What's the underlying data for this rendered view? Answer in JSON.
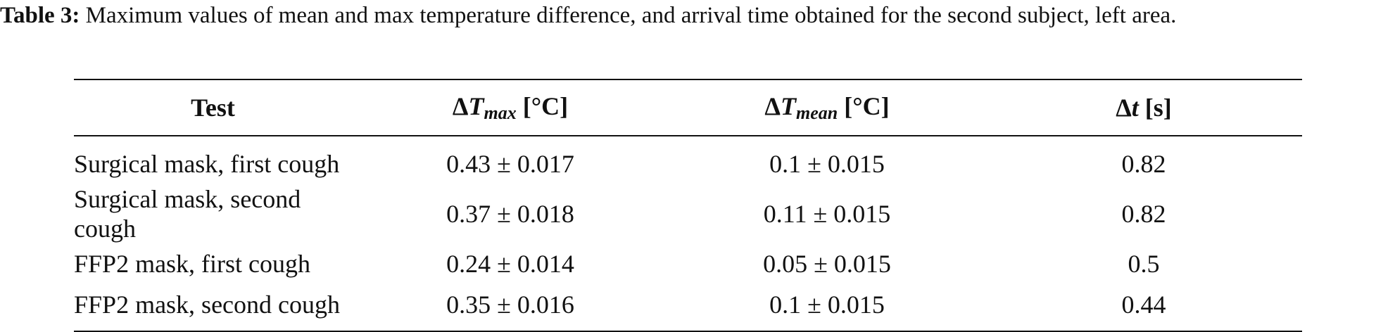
{
  "caption": {
    "label": "Table 3:",
    "text": "Maximum values of mean and max temperature difference, and arrival time obtained for the second subject, left area."
  },
  "table": {
    "headers": {
      "test": "Test",
      "dtmax": {
        "delta": "Δ",
        "var": "T",
        "sub": "max",
        "unit": "[°C]"
      },
      "dtmean": {
        "delta": "Δ",
        "var": "T",
        "sub": "mean",
        "unit": "[°C]"
      },
      "dt": {
        "delta": "Δ",
        "var": "t",
        "unit": "[s]"
      }
    },
    "rows": [
      {
        "test": "Surgical mask, first cough",
        "dtmax": "0.43 ± 0.017",
        "dtmean": "0.1 ± 0.015",
        "dt": "0.82"
      },
      {
        "test": "Surgical mask, second cough",
        "dtmax": "0.37 ± 0.018",
        "dtmean": "0.11 ± 0.015",
        "dt": "0.82"
      },
      {
        "test": "FFP2 mask, first cough",
        "dtmax": "0.24 ± 0.014",
        "dtmean": "0.05 ± 0.015",
        "dt": "0.5"
      },
      {
        "test": "FFP2 mask, second cough",
        "dtmax": "0.35 ± 0.016",
        "dtmean": "0.1 ± 0.015",
        "dt": "0.44"
      }
    ]
  }
}
